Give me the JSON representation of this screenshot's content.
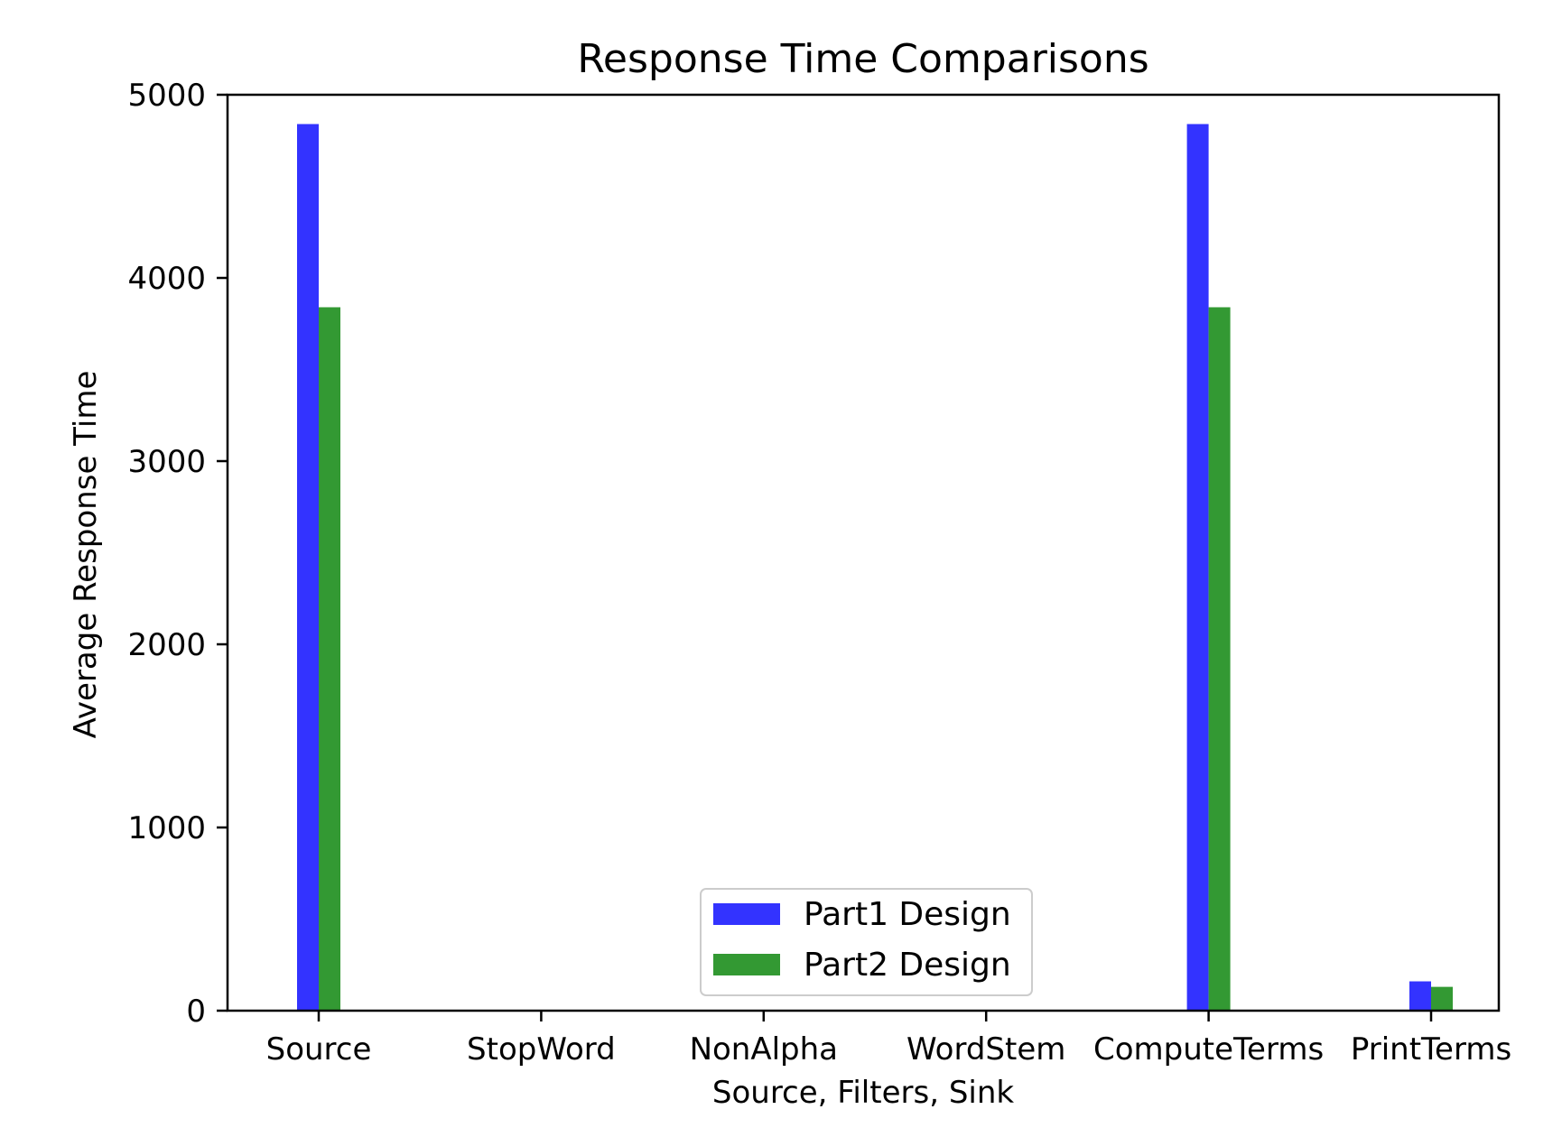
{
  "chart_data": {
    "type": "bar",
    "title": "Response Time Comparisons",
    "xlabel": "Source, Filters, Sink",
    "ylabel": "Average Response Time",
    "categories": [
      "Source",
      "StopWord",
      "NonAlpha",
      "WordStem",
      "ComputeTerms",
      "PrintTerms"
    ],
    "series": [
      {
        "name": "Part1 Design",
        "color": "#3333ff",
        "values": [
          4840,
          0,
          0,
          0,
          4840,
          160
        ]
      },
      {
        "name": "Part2 Design",
        "color": "#339933",
        "values": [
          3840,
          0,
          0,
          0,
          3840,
          130
        ]
      }
    ],
    "ylim": [
      0,
      5000
    ],
    "yticks": [
      0,
      1000,
      2000,
      3000,
      4000,
      5000
    ],
    "grid": false,
    "legend_position": "lower center"
  }
}
